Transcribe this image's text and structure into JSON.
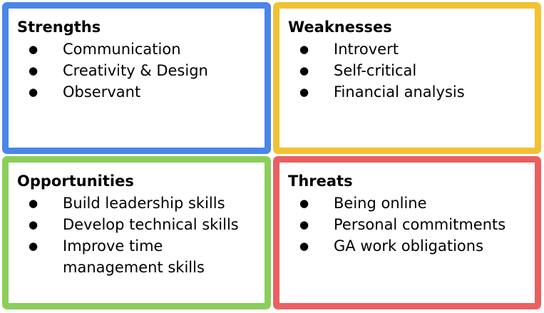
{
  "colors": {
    "strengths": "#4a86e8",
    "weaknesses": "#f1c232",
    "opportunities": "#8bcf5a",
    "threats": "#ea6060"
  },
  "quadrants": [
    {
      "title": "Strengths",
      "items": [
        "Communication",
        "Creativity & Design",
        "Observant"
      ]
    },
    {
      "title": "Weaknesses",
      "items": [
        "Introvert",
        "Self-critical",
        "Financial analysis"
      ]
    },
    {
      "title": "Opportunities",
      "items": [
        "Build leadership skills",
        "Develop technical skills",
        "Improve time management skills"
      ]
    },
    {
      "title": "Threats",
      "items": [
        "Being online",
        "Personal commitments",
        "GA work obligations"
      ]
    }
  ]
}
